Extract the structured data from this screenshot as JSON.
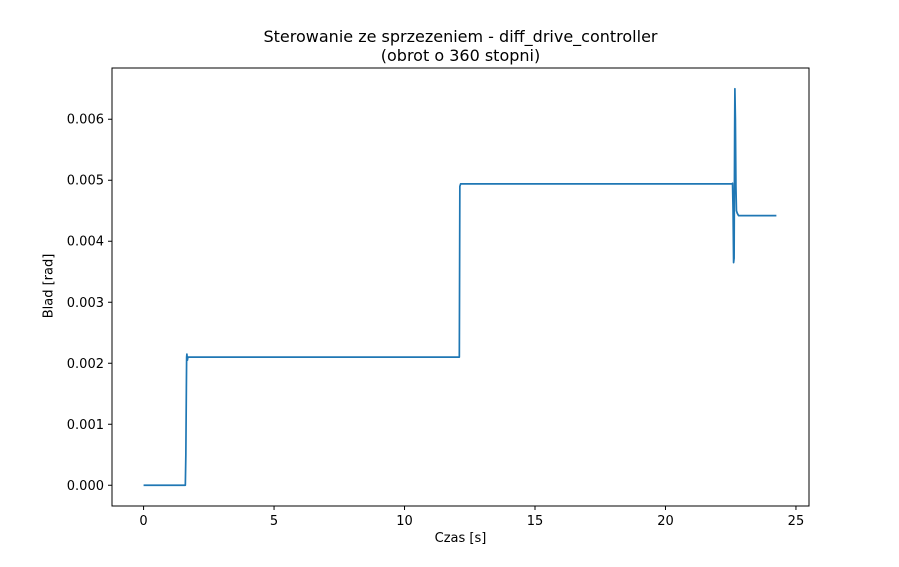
{
  "chart_data": {
    "type": "line",
    "title": "Sterowanie ze sprzezeniem - diff_drive_controller",
    "subtitle": "(obrot o 360 stopni)",
    "xlabel": "Czas [s]",
    "ylabel": "Blad [rad]",
    "xlim": [
      -1.21,
      25.5
    ],
    "ylim": [
      -0.00034,
      0.00684
    ],
    "xticks": [
      0,
      5,
      10,
      15,
      20,
      25
    ],
    "yticks": [
      0.0,
      0.001,
      0.002,
      0.003,
      0.004,
      0.005,
      0.006
    ],
    "ytick_labels": [
      "0.000",
      "0.001",
      "0.002",
      "0.003",
      "0.004",
      "0.005",
      "0.006"
    ],
    "grid": false,
    "line_color": "#1f77b4",
    "series": [
      {
        "x": [
          0,
          1.6,
          1.62,
          1.64,
          1.65,
          1.66,
          1.68,
          1.7,
          2.5,
          12.1,
          12.12,
          12.15,
          22.55,
          22.57,
          22.59,
          22.61,
          22.63,
          22.65,
          22.66,
          22.68,
          22.7,
          22.72,
          22.75,
          22.8,
          24.25
        ],
        "y": [
          0.0,
          0.0,
          0.0005,
          0.0016,
          0.0021,
          0.00215,
          0.00205,
          0.0021,
          0.0021,
          0.0021,
          0.0049,
          0.00494,
          0.00494,
          0.00495,
          0.0045,
          0.00365,
          0.00372,
          0.0058,
          0.0065,
          0.006,
          0.0049,
          0.0045,
          0.00446,
          0.00442,
          0.00442
        ]
      }
    ]
  }
}
